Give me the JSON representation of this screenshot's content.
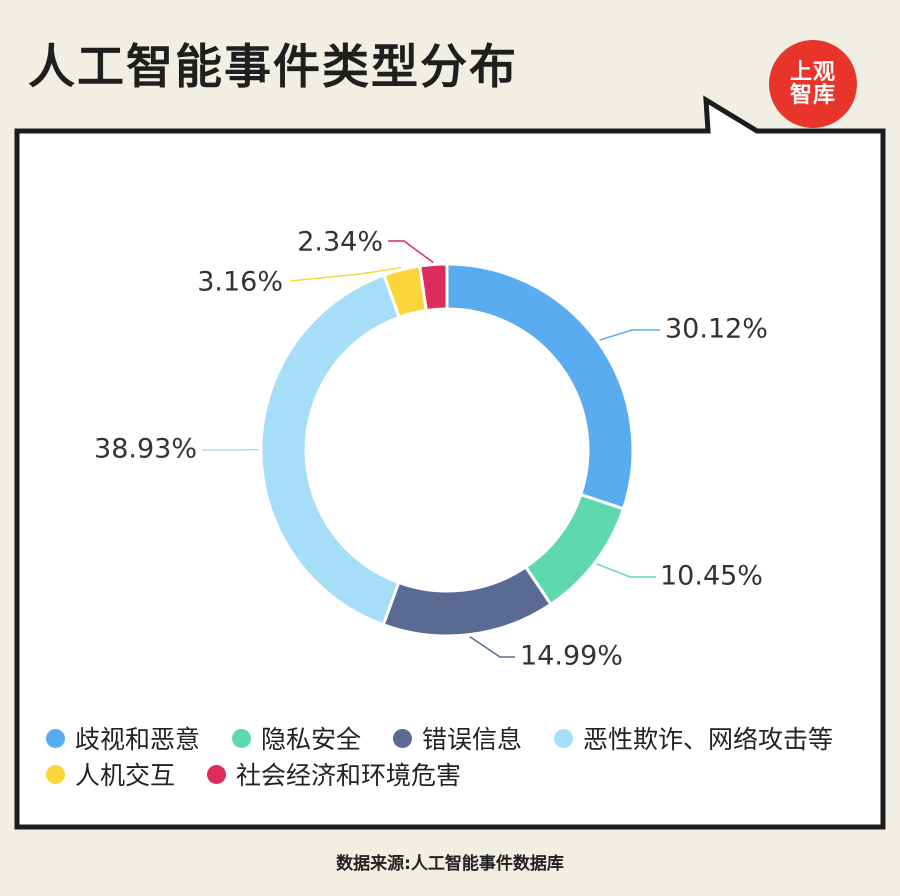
{
  "title": "人工智能事件类型分布",
  "logo": {
    "line1": "上观",
    "line2": "智库"
  },
  "source": "数据来源:人工智能事件数据库",
  "chart_data": {
    "type": "pie",
    "donut": true,
    "categories": [
      "歧视和恶意",
      "隐私安全",
      "错误信息",
      "恶性欺诈、网络攻击等",
      "人机交互",
      "社会经济和环境危害"
    ],
    "values": [
      30.12,
      10.45,
      14.99,
      38.93,
      3.16,
      2.34
    ],
    "labels": [
      "30.12%",
      "10.45%",
      "14.99%",
      "38.93%",
      "3.16%",
      "2.34%"
    ],
    "colors": [
      "#5aacf0",
      "#5fd8b0",
      "#5a6b93",
      "#a6defa",
      "#fad53c",
      "#dc2d5c"
    ],
    "legend_position": "bottom"
  }
}
